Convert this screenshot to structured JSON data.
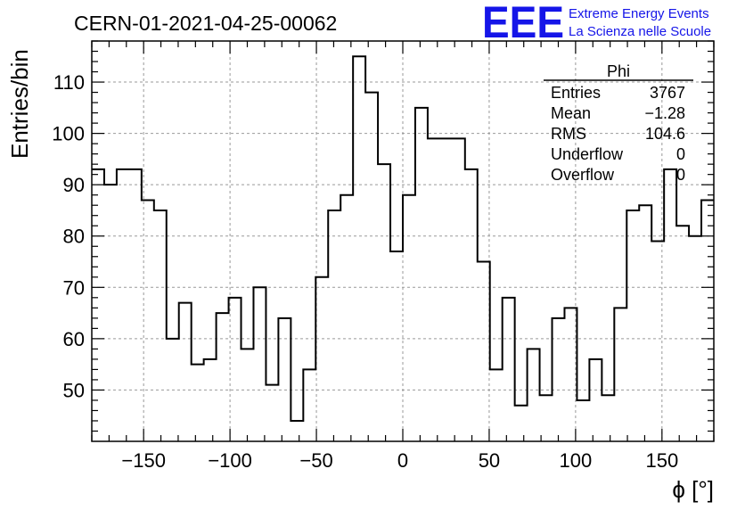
{
  "title": "CERN-01-2021-04-25-00062",
  "logo": {
    "mark": "EEE",
    "line1": "Extreme Energy Events",
    "line2": "La Scienza nelle Scuole",
    "color": "#1515e8"
  },
  "stats": {
    "name": "Phi",
    "rows": [
      {
        "label": "Entries",
        "value": "3767"
      },
      {
        "label": "Mean",
        "value": "−1.28"
      },
      {
        "label": "RMS",
        "value": "104.6"
      },
      {
        "label": "Underflow",
        "value": "0"
      },
      {
        "label": "Overflow",
        "value": "0"
      }
    ]
  },
  "chart_data": {
    "type": "histogram",
    "xlabel": "ϕ [°]",
    "ylabel": "Entries/bin",
    "xlim": [
      -180,
      180
    ],
    "ylim": [
      40,
      118
    ],
    "bin_width": 7.2,
    "xticks": [
      -150,
      -100,
      -50,
      0,
      50,
      100,
      150
    ],
    "xtick_labels": [
      "−150",
      "−100",
      "−50",
      "0",
      "50",
      "100",
      "150"
    ],
    "yticks": [
      50,
      60,
      70,
      80,
      90,
      100,
      110
    ],
    "grid": true,
    "values": [
      93,
      90,
      93,
      93,
      87,
      85,
      60,
      67,
      55,
      56,
      65,
      68,
      58,
      70,
      51,
      64,
      44,
      54,
      72,
      85,
      88,
      115,
      108,
      94,
      77,
      88,
      105,
      99,
      99,
      99,
      93,
      75,
      54,
      68,
      47,
      58,
      49,
      64,
      66,
      48,
      56,
      49,
      66,
      85,
      86,
      79,
      93,
      82,
      80,
      87
    ]
  }
}
